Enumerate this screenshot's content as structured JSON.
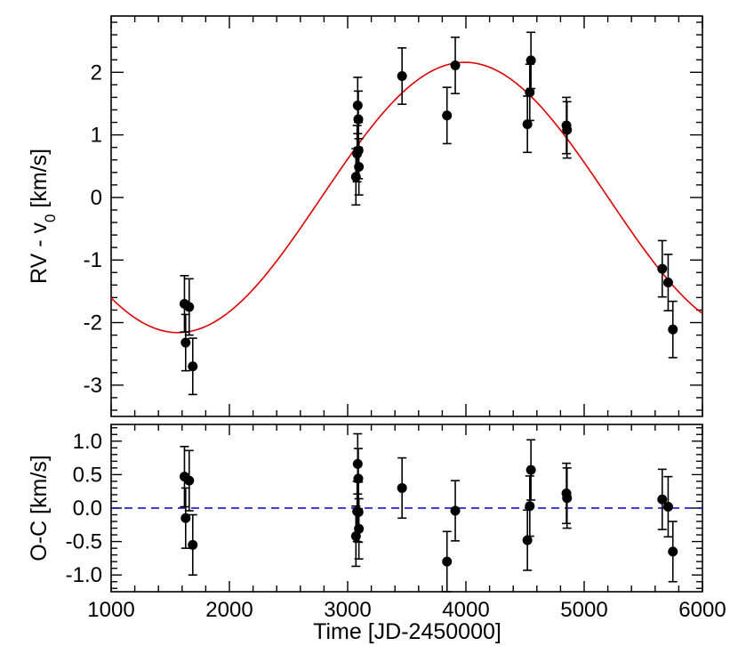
{
  "chart_data": [
    {
      "type": "scatter",
      "panel": "top",
      "xlabel": "",
      "ylabel": "RV - v",
      "ylabel_subscript": "0",
      "ylabel_unit": " [km/s]",
      "xlim": [
        1000,
        6000
      ],
      "ylim": [
        -3.5,
        2.9
      ],
      "x_ticks": [
        1000,
        2000,
        3000,
        4000,
        5000,
        6000
      ],
      "y_ticks": [
        -3,
        -2,
        -1,
        0,
        1,
        2
      ],
      "y_tick_labels": [
        "-3",
        "-2",
        "-1",
        "0",
        "1",
        "2"
      ],
      "grid": false,
      "legend": "none",
      "series": [
        {
          "kind": "points",
          "color": "#000000",
          "points": [
            {
              "x": 1620,
              "y": -1.7,
              "err": 0.45
            },
            {
              "x": 1630,
              "y": -2.32,
              "err": 0.45
            },
            {
              "x": 1660,
              "y": -1.75,
              "err": 0.45
            },
            {
              "x": 1690,
              "y": -2.7,
              "err": 0.45
            },
            {
              "x": 3070,
              "y": 0.33,
              "err": 0.45
            },
            {
              "x": 3080,
              "y": 0.7,
              "err": 0.45
            },
            {
              "x": 3085,
              "y": 1.47,
              "err": 0.45
            },
            {
              "x": 3090,
              "y": 1.25,
              "err": 0.45
            },
            {
              "x": 3092,
              "y": 0.75,
              "err": 0.45
            },
            {
              "x": 3095,
              "y": 0.49,
              "err": 0.45
            },
            {
              "x": 3460,
              "y": 1.94,
              "err": 0.45
            },
            {
              "x": 3840,
              "y": 1.31,
              "err": 0.45
            },
            {
              "x": 3910,
              "y": 2.11,
              "err": 0.45
            },
            {
              "x": 4520,
              "y": 1.17,
              "err": 0.45
            },
            {
              "x": 4540,
              "y": 1.68,
              "err": 0.45
            },
            {
              "x": 4550,
              "y": 2.19,
              "err": 0.45
            },
            {
              "x": 4850,
              "y": 1.15,
              "err": 0.45
            },
            {
              "x": 4855,
              "y": 1.08,
              "err": 0.45
            },
            {
              "x": 5660,
              "y": -1.14,
              "err": 0.45
            },
            {
              "x": 5710,
              "y": -1.36,
              "err": 0.45
            },
            {
              "x": 5750,
              "y": -2.11,
              "err": 0.45
            }
          ]
        },
        {
          "kind": "model",
          "color": "#dd0000",
          "function": "sinusoid",
          "amplitude": 2.16,
          "period": 4850,
          "peak_at": 3990
        }
      ]
    },
    {
      "type": "scatter",
      "panel": "bottom",
      "xlabel": "Time [JD-2450000]",
      "ylabel": "O-C [km/s]",
      "xlim": [
        1000,
        6000
      ],
      "ylim": [
        -1.25,
        1.25
      ],
      "x_ticks": [
        1000,
        2000,
        3000,
        4000,
        5000,
        6000
      ],
      "x_tick_labels": [
        "1000",
        "2000",
        "3000",
        "4000",
        "5000",
        "6000"
      ],
      "y_ticks": [
        -1.0,
        -0.5,
        0.0,
        0.5,
        1.0
      ],
      "y_tick_labels": [
        "-1.0",
        "-0.5",
        "0.0",
        "0.5",
        "1.0"
      ],
      "grid": false,
      "legend": "none",
      "series": [
        {
          "kind": "points",
          "color": "#000000",
          "points": [
            {
              "x": 1620,
              "y": 0.47,
              "err": 0.45
            },
            {
              "x": 1630,
              "y": -0.15,
              "err": 0.45
            },
            {
              "x": 1660,
              "y": 0.41,
              "err": 0.45
            },
            {
              "x": 1690,
              "y": -0.55,
              "err": 0.45
            },
            {
              "x": 3070,
              "y": -0.42,
              "err": 0.45
            },
            {
              "x": 3080,
              "y": -0.05,
              "err": 0.45
            },
            {
              "x": 3085,
              "y": 0.66,
              "err": 0.45
            },
            {
              "x": 3090,
              "y": 0.44,
              "err": 0.45
            },
            {
              "x": 3092,
              "y": -0.06,
              "err": 0.45
            },
            {
              "x": 3095,
              "y": -0.31,
              "err": 0.45
            },
            {
              "x": 3460,
              "y": 0.3,
              "err": 0.45
            },
            {
              "x": 3840,
              "y": -0.8,
              "err": 0.45
            },
            {
              "x": 3910,
              "y": -0.04,
              "err": 0.45
            },
            {
              "x": 4520,
              "y": -0.48,
              "err": 0.45
            },
            {
              "x": 4540,
              "y": 0.03,
              "err": 0.45
            },
            {
              "x": 4550,
              "y": 0.57,
              "err": 0.45
            },
            {
              "x": 4850,
              "y": 0.22,
              "err": 0.45
            },
            {
              "x": 4855,
              "y": 0.15,
              "err": 0.45
            },
            {
              "x": 5660,
              "y": 0.13,
              "err": 0.45
            },
            {
              "x": 5710,
              "y": 0.02,
              "err": 0.45
            },
            {
              "x": 5750,
              "y": -0.65,
              "err": 0.45
            }
          ]
        },
        {
          "kind": "reference-line",
          "color": "#0000cc",
          "style": "dashed",
          "y": 0.0
        }
      ]
    }
  ]
}
